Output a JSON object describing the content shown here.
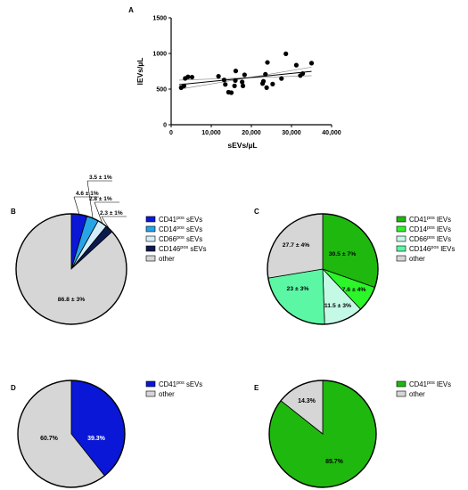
{
  "colors": {
    "cd41_sev": "#0a17d6",
    "cd14_sev": "#27a4e6",
    "cd66_sev": "#d4eef9",
    "cd146_sev": "#0a1a4e",
    "other": "#d6d6d6",
    "cd41_lev": "#1fb80f",
    "cd14_lev": "#2cf52a",
    "cd66_lev": "#c4f9e6",
    "cd146_lev": "#5cf7a4"
  },
  "chart_data": [
    {
      "panel": "A",
      "type": "scatter",
      "xlabel": "sEVs/µL",
      "ylabel": "lEVs/µL",
      "xlim": [
        0,
        40000
      ],
      "ylim": [
        0,
        1500
      ],
      "xticks": [
        "0",
        "10,000",
        "20,000",
        "30,000",
        "40,000"
      ],
      "yticks": [
        "0",
        "500",
        "1000",
        "1500"
      ],
      "points": [
        [
          2500,
          520
        ],
        [
          3200,
          545
        ],
        [
          3500,
          650
        ],
        [
          4200,
          672
        ],
        [
          5200,
          668
        ],
        [
          11800,
          680
        ],
        [
          13200,
          628
        ],
        [
          13500,
          565
        ],
        [
          14300,
          456
        ],
        [
          15000,
          450
        ],
        [
          15800,
          545
        ],
        [
          16000,
          620
        ],
        [
          16100,
          755
        ],
        [
          17700,
          600
        ],
        [
          17900,
          545
        ],
        [
          18300,
          700
        ],
        [
          22800,
          578
        ],
        [
          23000,
          610
        ],
        [
          23500,
          708
        ],
        [
          23800,
          520
        ],
        [
          24000,
          874
        ],
        [
          25300,
          570
        ],
        [
          27500,
          648
        ],
        [
          28600,
          995
        ],
        [
          31200,
          836
        ],
        [
          32200,
          690
        ],
        [
          32800,
          718
        ],
        [
          35000,
          864
        ]
      ],
      "fit_line": [
        [
          2000,
          562
        ],
        [
          35000,
          748
        ]
      ],
      "ci_upper": [
        [
          2000,
          498
        ],
        [
          17000,
          626
        ],
        [
          35000,
          808
        ]
      ],
      "ci_lower": [
        [
          2000,
          626
        ],
        [
          17000,
          598
        ],
        [
          35000,
          688
        ]
      ]
    },
    {
      "panel": "B",
      "type": "pie",
      "slices": [
        {
          "key": "cd41_sev",
          "value": 4.6,
          "label": "4.6 ± 1%",
          "legend": "CD41",
          "sup": "pos",
          "suffix": " sEVs"
        },
        {
          "key": "cd14_sev",
          "value": 3.5,
          "label": "3.5 ± 1%",
          "legend": "CD14",
          "sup": "pos",
          "suffix": " sEVs"
        },
        {
          "key": "cd66_sev",
          "value": 2.8,
          "label": "2.8 ± 1%",
          "legend": "CD66",
          "sup": "pos",
          "suffix": " sEVs"
        },
        {
          "key": "cd146_sev",
          "value": 2.3,
          "label": "2.3 ± 1%",
          "legend": "CD146",
          "sup": "pos",
          "suffix": " sEVs"
        },
        {
          "key": "other",
          "value": 86.8,
          "label": "86.8 ± 3%",
          "legend": "other",
          "sup": "",
          "suffix": ""
        }
      ]
    },
    {
      "panel": "C",
      "type": "pie",
      "slices": [
        {
          "key": "cd41_lev",
          "value": 30.5,
          "label": "30.5 ± 7%",
          "legend": "CD41",
          "sup": "pos",
          "suffix": " lEVs"
        },
        {
          "key": "cd14_lev",
          "value": 7.6,
          "label": "7.6 ± 4%",
          "legend": "CD14",
          "sup": "pos",
          "suffix": " lEVs"
        },
        {
          "key": "cd66_lev",
          "value": 11.5,
          "label": "11.5 ± 3%",
          "legend": "CD66",
          "sup": "pos",
          "suffix": " lEVs"
        },
        {
          "key": "cd146_lev",
          "value": 23,
          "label": "23 ± 3%",
          "legend": "CD146",
          "sup": "pos",
          "suffix": " lEVs"
        },
        {
          "key": "other",
          "value": 27.7,
          "label": "27.7 ± 4%",
          "legend": "other",
          "sup": "",
          "suffix": ""
        }
      ]
    },
    {
      "panel": "D",
      "type": "pie",
      "slices": [
        {
          "key": "cd41_sev",
          "value": 39.3,
          "label": "39.3%",
          "legend": "CD41",
          "sup": "pos",
          "suffix": " sEVs"
        },
        {
          "key": "other",
          "value": 60.7,
          "label": "60.7%",
          "legend": "other",
          "sup": "",
          "suffix": ""
        }
      ]
    },
    {
      "panel": "E",
      "type": "pie",
      "slices": [
        {
          "key": "cd41_lev",
          "value": 85.7,
          "label": "85.7%",
          "legend": "CD41",
          "sup": "pos",
          "suffix": " lEVs"
        },
        {
          "key": "other",
          "value": 14.3,
          "label": "14.3%",
          "legend": "other",
          "sup": "",
          "suffix": ""
        }
      ]
    }
  ]
}
